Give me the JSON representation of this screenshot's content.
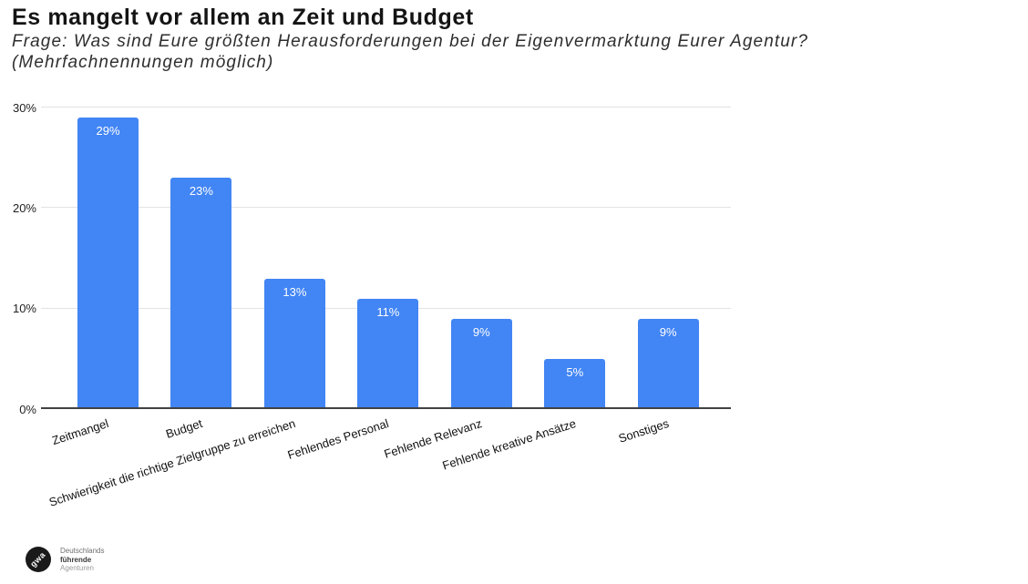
{
  "chart_data": {
    "type": "bar",
    "title": "Es mangelt vor allem an Zeit und Budget",
    "subtitle_lines": [
      "Frage: Was sind Eure größten Herausforderungen bei der Eigenvermarktung Eurer Agentur?",
      "(Mehrfachnennungen möglich)"
    ],
    "categories": [
      "Zeitmangel",
      "Budget",
      "Schwierigkeit die richtige Zielgruppe zu erreichen",
      "Fehlendes Personal",
      "Fehlende Relevanz",
      "Fehlende kreative Ansätze",
      "Sonstiges"
    ],
    "values": [
      29,
      23,
      13,
      11,
      9,
      5,
      9
    ],
    "value_labels": [
      "29%",
      "23%",
      "13%",
      "11%",
      "9%",
      "5%",
      "9%"
    ],
    "xlabel": "",
    "ylabel": "",
    "ylim": [
      0,
      30
    ],
    "y_ticks": [
      {
        "value": 0,
        "label": "0%"
      },
      {
        "value": 10,
        "label": "10%"
      },
      {
        "value": 20,
        "label": "20%"
      },
      {
        "value": 30,
        "label": "30%"
      }
    ],
    "grid": true,
    "legend": "none",
    "x_label_rotation_deg": -18,
    "colors": {
      "bar": "#4285f4",
      "bar_label": "#ffffff",
      "gridline": "#e3e3e3",
      "axis_line": "#424242",
      "tick_label": "#1f1f1f"
    }
  },
  "footer_logo": {
    "monogram": "gwa",
    "caption_lines": [
      "Deutschlands",
      "führende",
      "Agenturen"
    ]
  }
}
